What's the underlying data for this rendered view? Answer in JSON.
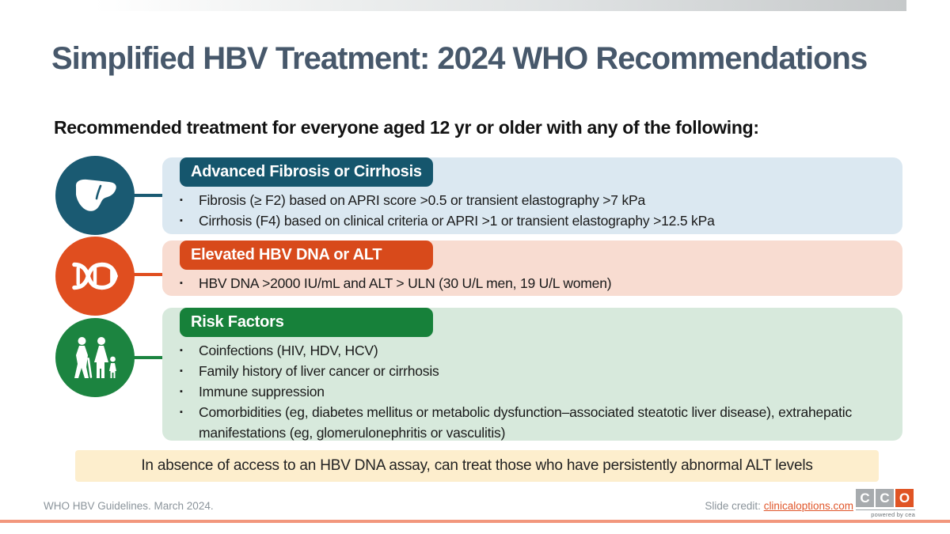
{
  "slide": {
    "title": "Simplified HBV Treatment: 2024 WHO Recommendations",
    "subtitle": "Recommended treatment for everyone aged 12 yr or older with any of the following:",
    "sections": [
      {
        "id": "fibrosis",
        "icon": "liver-icon",
        "header": "Advanced Fibrosis or Cirrhosis",
        "accent_color": "#15566d",
        "circle_color": "#1a5a72",
        "box_color": "#dbe8f1",
        "bullets": [
          "Fibrosis (≥ F2) based on APRI score >0.5 or transient elastography >7 kPa",
          "Cirrhosis (F4) based on clinical criteria or APRI >1 or transient elastography >12.5 kPa"
        ]
      },
      {
        "id": "dna",
        "icon": "dna-icon",
        "header": "Elevated HBV DNA or ALT",
        "accent_color": "#d84a1b",
        "circle_color": "#e04e1f",
        "box_color": "#f8dcd1",
        "bullets": [
          "HBV DNA >2000 IU/mL and ALT > ULN (30 U/L men, 19 U/L women)"
        ]
      },
      {
        "id": "risk",
        "icon": "people-icon",
        "header": "Risk Factors",
        "accent_color": "#17813a",
        "circle_color": "#1c8440",
        "box_color": "#d7e9dc",
        "bullets": [
          "Coinfections (HIV, HDV, HCV)",
          "Family history of liver cancer or cirrhosis",
          "Immune suppression",
          "Comorbidities (eg, diabetes mellitus or metabolic dysfunction–associated steatotic liver disease), extrahepatic manifestations (eg, glomerulonephritis or vasculitis)"
        ]
      }
    ],
    "note": "In absence of access to an HBV DNA assay, can treat those who have persistently abnormal ALT levels",
    "footer": {
      "left": "WHO HBV Guidelines. March 2024.",
      "credit_label": "Slide credit: ",
      "credit_link": "clinicaloptions.com",
      "logo_letters": [
        "C",
        "C",
        "O"
      ],
      "logo_square_colors": [
        "#a7abae",
        "#a7abae",
        "#e05424"
      ],
      "logo_tagline": "powered by cea"
    },
    "colors": {
      "title_text": "#47586b",
      "footer_line": "#f2977d",
      "credit_link": "#e0562a",
      "note_bg": "#fdeecd"
    }
  }
}
